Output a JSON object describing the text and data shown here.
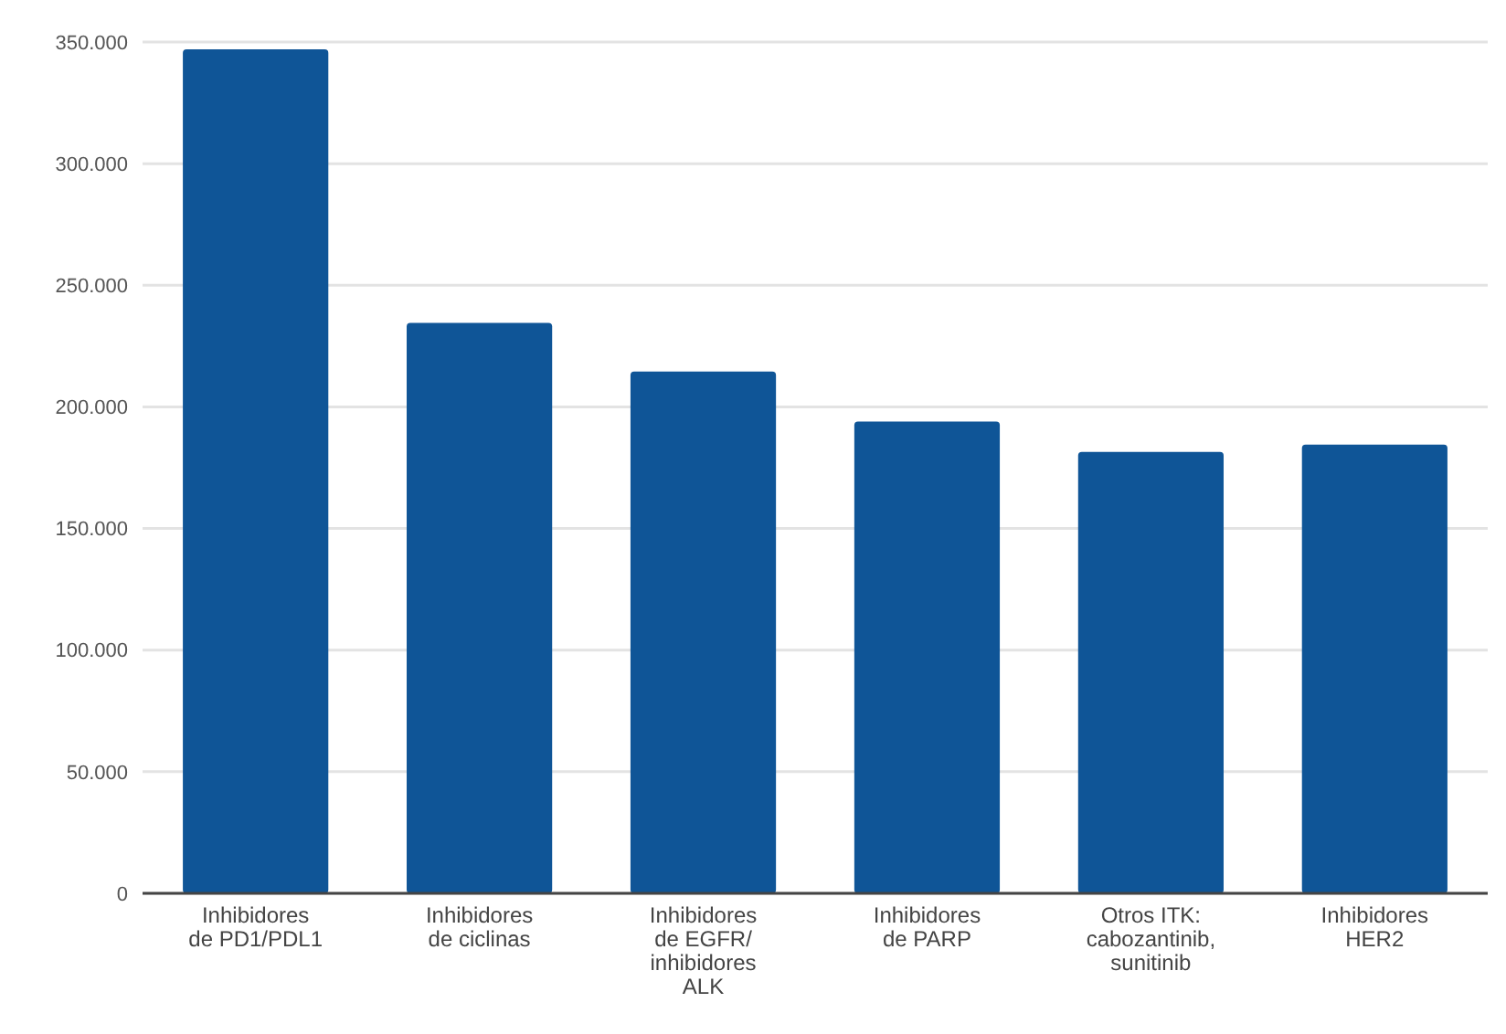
{
  "chart_data": {
    "type": "bar",
    "categories": [
      "Inhibidores\nde PD1/PDL1",
      "Inhibidores\nde ciclinas",
      "Inhibidores\nde EGFR/\ninhibidores\nALK",
      "Inhibidores\nde PARP",
      "Otros ITK:\ncabozantinib,\nsunitinib",
      "Inhibidores\nHER2"
    ],
    "values": [
      347000,
      234500,
      214500,
      194000,
      181500,
      184500
    ],
    "color": "#0f5597",
    "ylim": [
      0,
      350000
    ],
    "yticks": [
      {
        "value": 0,
        "label": "0"
      },
      {
        "value": 50000,
        "label": "50.000"
      },
      {
        "value": 100000,
        "label": "100.000"
      },
      {
        "value": 150000,
        "label": "150.000"
      },
      {
        "value": 200000,
        "label": "200.000"
      },
      {
        "value": 250000,
        "label": "250.000"
      },
      {
        "value": 300000,
        "label": "300.000"
      },
      {
        "value": 350000,
        "label": "350.000"
      }
    ],
    "grid": "y"
  }
}
